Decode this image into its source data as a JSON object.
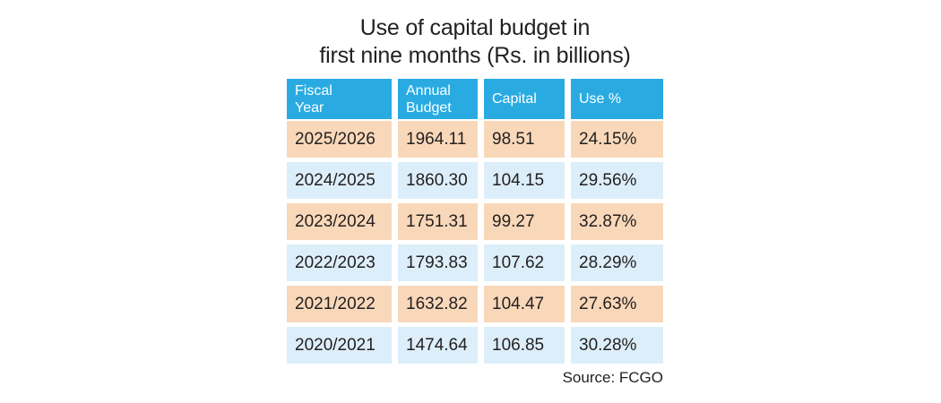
{
  "title": {
    "line1": "Use of capital budget in",
    "line2": "first nine months (Rs. in billions)"
  },
  "table": {
    "columns": [
      {
        "lines": [
          "Fiscal",
          "Year"
        ]
      },
      {
        "lines": [
          "Annual",
          "Budget"
        ]
      },
      {
        "lines": [
          "Capital"
        ]
      },
      {
        "lines": [
          "Use %"
        ]
      }
    ],
    "rows": [
      {
        "fiscal_year": "2025/2026",
        "annual_budget": "1964.11",
        "capital": "98.51",
        "use_percent": "24.15%"
      },
      {
        "fiscal_year": "2024/2025",
        "annual_budget": "1860.30",
        "capital": "104.15",
        "use_percent": "29.56%"
      },
      {
        "fiscal_year": "2023/2024",
        "annual_budget": "1751.31",
        "capital": "99.27",
        "use_percent": "32.87%"
      },
      {
        "fiscal_year": "2022/2023",
        "annual_budget": "1793.83",
        "capital": "107.62",
        "use_percent": "28.29%"
      },
      {
        "fiscal_year": "2021/2022",
        "annual_budget": "1632.82",
        "capital": "104.47",
        "use_percent": "27.63%"
      },
      {
        "fiscal_year": "2020/2021",
        "annual_budget": "1474.64",
        "capital": "106.85",
        "use_percent": "30.28%"
      }
    ]
  },
  "source": "Source: FCGO",
  "colors": {
    "header_bg": "#29ABE2",
    "row_peach": "#F9D8B9",
    "row_blue": "#DCEEFA",
    "text": "#231F20",
    "header_text": "#FFFFFF"
  },
  "chart_data": {
    "type": "table",
    "title": "Use of capital budget in first nine months (Rs. in billions)",
    "columns": [
      "Fiscal Year",
      "Annual Budget",
      "Capital",
      "Use %"
    ],
    "rows": [
      [
        "2025/2026",
        1964.11,
        98.51,
        "24.15%"
      ],
      [
        "2024/2025",
        1860.3,
        104.15,
        "29.56%"
      ],
      [
        "2023/2024",
        1751.31,
        99.27,
        "32.87%"
      ],
      [
        "2022/2023",
        1793.83,
        107.62,
        "28.29%"
      ],
      [
        "2021/2022",
        1632.82,
        104.47,
        "27.63%"
      ],
      [
        "2020/2021",
        1474.64,
        106.85,
        "30.28%"
      ]
    ],
    "source": "Source: FCGO"
  }
}
